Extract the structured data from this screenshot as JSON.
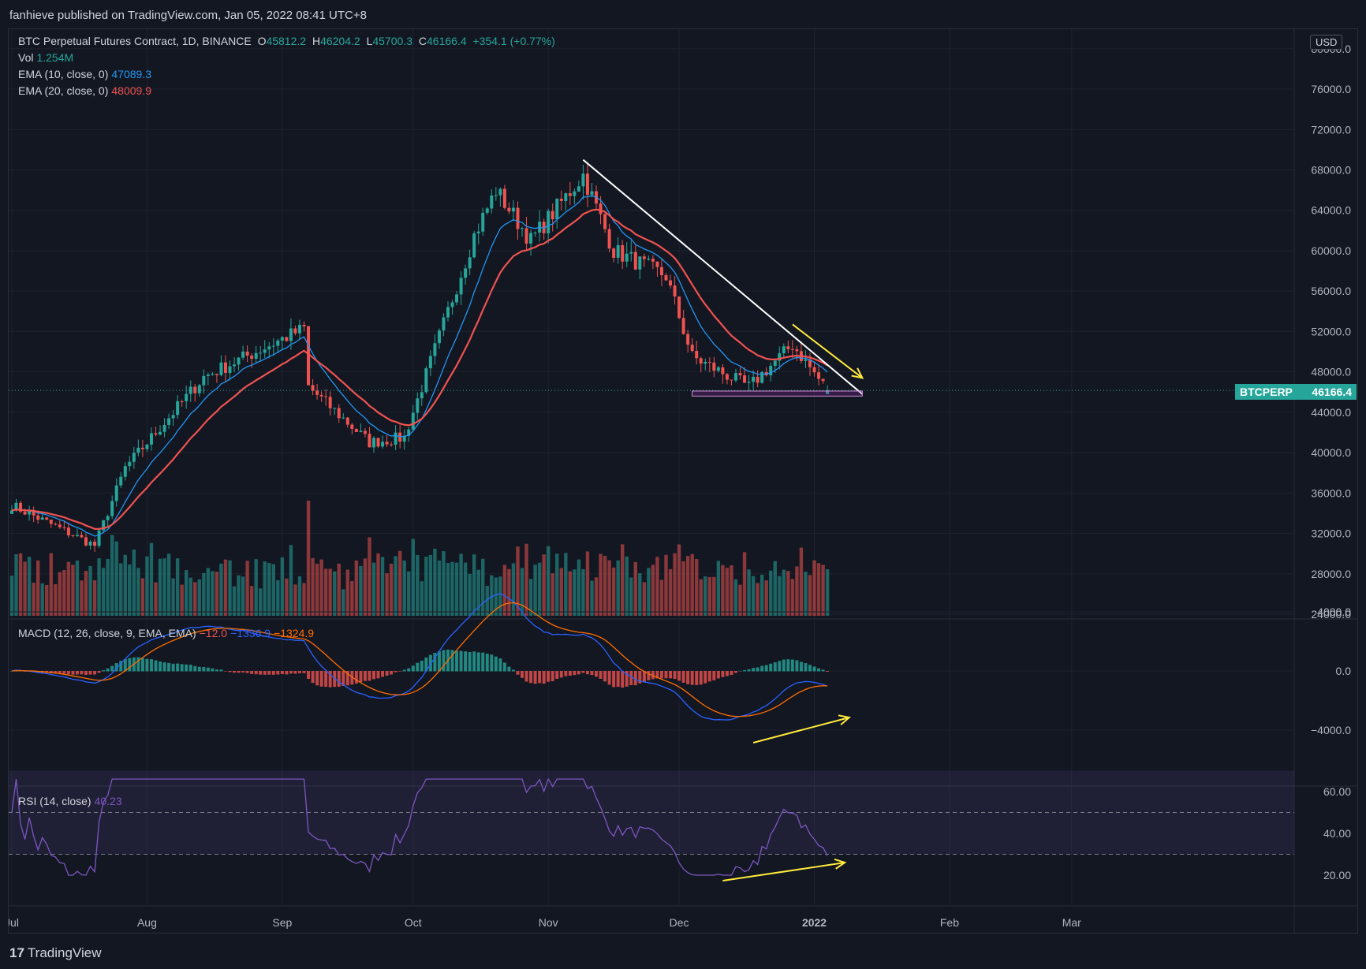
{
  "header": {
    "published": "fanhieve published on TradingView.com, Jan 05, 2022 08:41 UTC+8"
  },
  "footer": {
    "brand_mark": "17",
    "brand": "TradingView"
  },
  "legend": {
    "title": "BTC Perpetual Futures Contract, 1D, BINANCE",
    "o_label": "O",
    "o": "45812.2",
    "h_label": "H",
    "h": "46204.2",
    "l_label": "L",
    "l": "45700.3",
    "c_label": "C",
    "c": "46166.4",
    "change": "+354.1 (+0.77%)",
    "vol_label": "Vol",
    "vol": "1.254M",
    "ema10_label": "EMA (10, close, 0)",
    "ema10": "47089.3",
    "ema20_label": "EMA (20, close, 0)",
    "ema20": "48009.9",
    "macd_label": "MACD (12, 26, close, 9, EMA, EMA)",
    "macd_hist": "−12.0",
    "macd_line": "−1336.9",
    "macd_signal": "−1324.9",
    "rsi_label": "RSI (14, close)",
    "rsi": "40.23"
  },
  "price_tag": {
    "symbol": "BTCPERP",
    "price": "46166.4"
  },
  "currency": "USD",
  "colors": {
    "bg": "#131722",
    "up": "#26a69a",
    "down": "#ef5350",
    "ema10": "#2962ff",
    "ema20": "#f23645",
    "macd": "#2962ff",
    "signal": "#ff6d00",
    "rsi": "#7e57c2",
    "annotation": "#ffeb3b"
  },
  "chart_data": {
    "type": "candlestick",
    "title": "BTC Perpetual Futures Contract, 1D, BINANCE",
    "price_axis": {
      "ticks": [
        "80000.0",
        "76000.0",
        "72000.0",
        "68000.0",
        "64000.0",
        "60000.0",
        "56000.0",
        "52000.0",
        "48000.0",
        "44000.0",
        "40000.0",
        "36000.0",
        "32000.0",
        "28000.0",
        "24000.0"
      ],
      "range": [
        24000,
        81000
      ]
    },
    "time_axis": {
      "ticks": [
        "Jul",
        "Aug",
        "Sep",
        "Oct",
        "Nov",
        "Dec",
        "2022",
        "Feb",
        "Mar"
      ]
    },
    "price_keypoints": [
      {
        "date": "2021-07-01",
        "close": 34800
      },
      {
        "date": "2021-07-20",
        "close": 30800
      },
      {
        "date": "2021-07-27",
        "close": 38500
      },
      {
        "date": "2021-08-14",
        "close": 47500
      },
      {
        "date": "2021-09-06",
        "close": 52300
      },
      {
        "date": "2021-09-07",
        "close": 46500
      },
      {
        "date": "2021-09-21",
        "close": 41000
      },
      {
        "date": "2021-09-29",
        "close": 41500
      },
      {
        "date": "2021-10-15",
        "close": 61500
      },
      {
        "date": "2021-10-20",
        "close": 66000
      },
      {
        "date": "2021-10-28",
        "close": 61000
      },
      {
        "date": "2021-11-09",
        "close": 67500
      },
      {
        "date": "2021-11-16",
        "close": 60000
      },
      {
        "date": "2021-11-28",
        "close": 57500
      },
      {
        "date": "2021-12-04",
        "close": 49500
      },
      {
        "date": "2021-12-17",
        "close": 46500
      },
      {
        "date": "2021-12-27",
        "close": 50700
      },
      {
        "date": "2022-01-04",
        "close": 46166
      }
    ],
    "ema10_last": 47089.3,
    "ema20_last": 48009.9,
    "volume_last": "1.254M",
    "macd": {
      "hist_last": -12.0,
      "macd_last": -1336.9,
      "signal_last": -1324.9,
      "ticks": [
        "4000.0",
        "0.0",
        "−4000.0"
      ]
    },
    "rsi": {
      "last": 40.23,
      "ticks": [
        "60.00",
        "40.00",
        "20.00"
      ],
      "band": [
        30,
        70
      ]
    },
    "annotations": [
      "descending trendline from Nov high",
      "horizontal support near 45700",
      "yellow arrows showing bullish divergence on MACD and RSI"
    ]
  }
}
